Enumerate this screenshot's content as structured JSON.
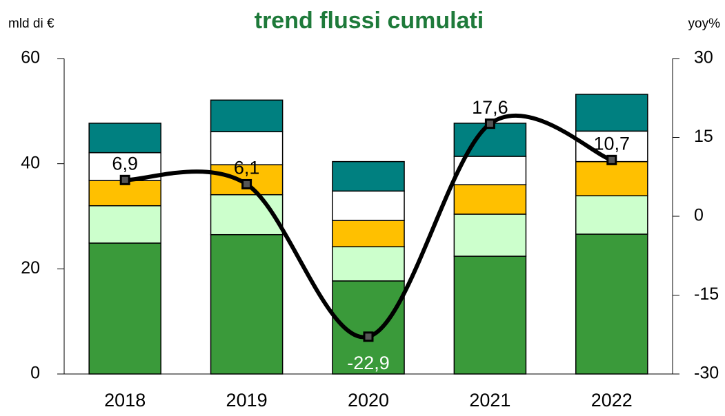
{
  "chart_data": {
    "type": "bar",
    "title": "trend flussi cumulati",
    "y_label": "mld di €",
    "y2_label": "yoy%",
    "categories": [
      "2018",
      "2019",
      "2020",
      "2021",
      "2022"
    ],
    "stacked": true,
    "series": [
      {
        "color": "#3a9a3a",
        "values": [
          24.9,
          26.5,
          17.7,
          22.4,
          26.6
        ]
      },
      {
        "color": "#ccffcc",
        "values": [
          7.1,
          7.6,
          6.5,
          8.0,
          7.3
        ]
      },
      {
        "color": "#ffc000",
        "values": [
          4.8,
          5.7,
          5.0,
          5.6,
          6.5
        ]
      },
      {
        "color": "#ffffff",
        "values": [
          5.3,
          6.3,
          5.6,
          5.4,
          5.8
        ]
      },
      {
        "color": "#008080",
        "values": [
          5.6,
          6.0,
          5.6,
          6.3,
          7.0
        ]
      },
      {
        "type": "line",
        "axis": "y2",
        "color": "#000000",
        "smooth": true,
        "values": [
          6.9,
          6.1,
          -22.9,
          17.6,
          10.7
        ],
        "value_labels": [
          "6,9",
          "6,1",
          "-22,9",
          "17,6",
          "10,7"
        ]
      }
    ],
    "ylim": [
      0,
      60
    ],
    "yticks": [
      0,
      20,
      40,
      60
    ],
    "y2lim": [
      -30,
      30
    ],
    "y2ticks": [
      -30,
      -15,
      0,
      15,
      30
    ]
  }
}
